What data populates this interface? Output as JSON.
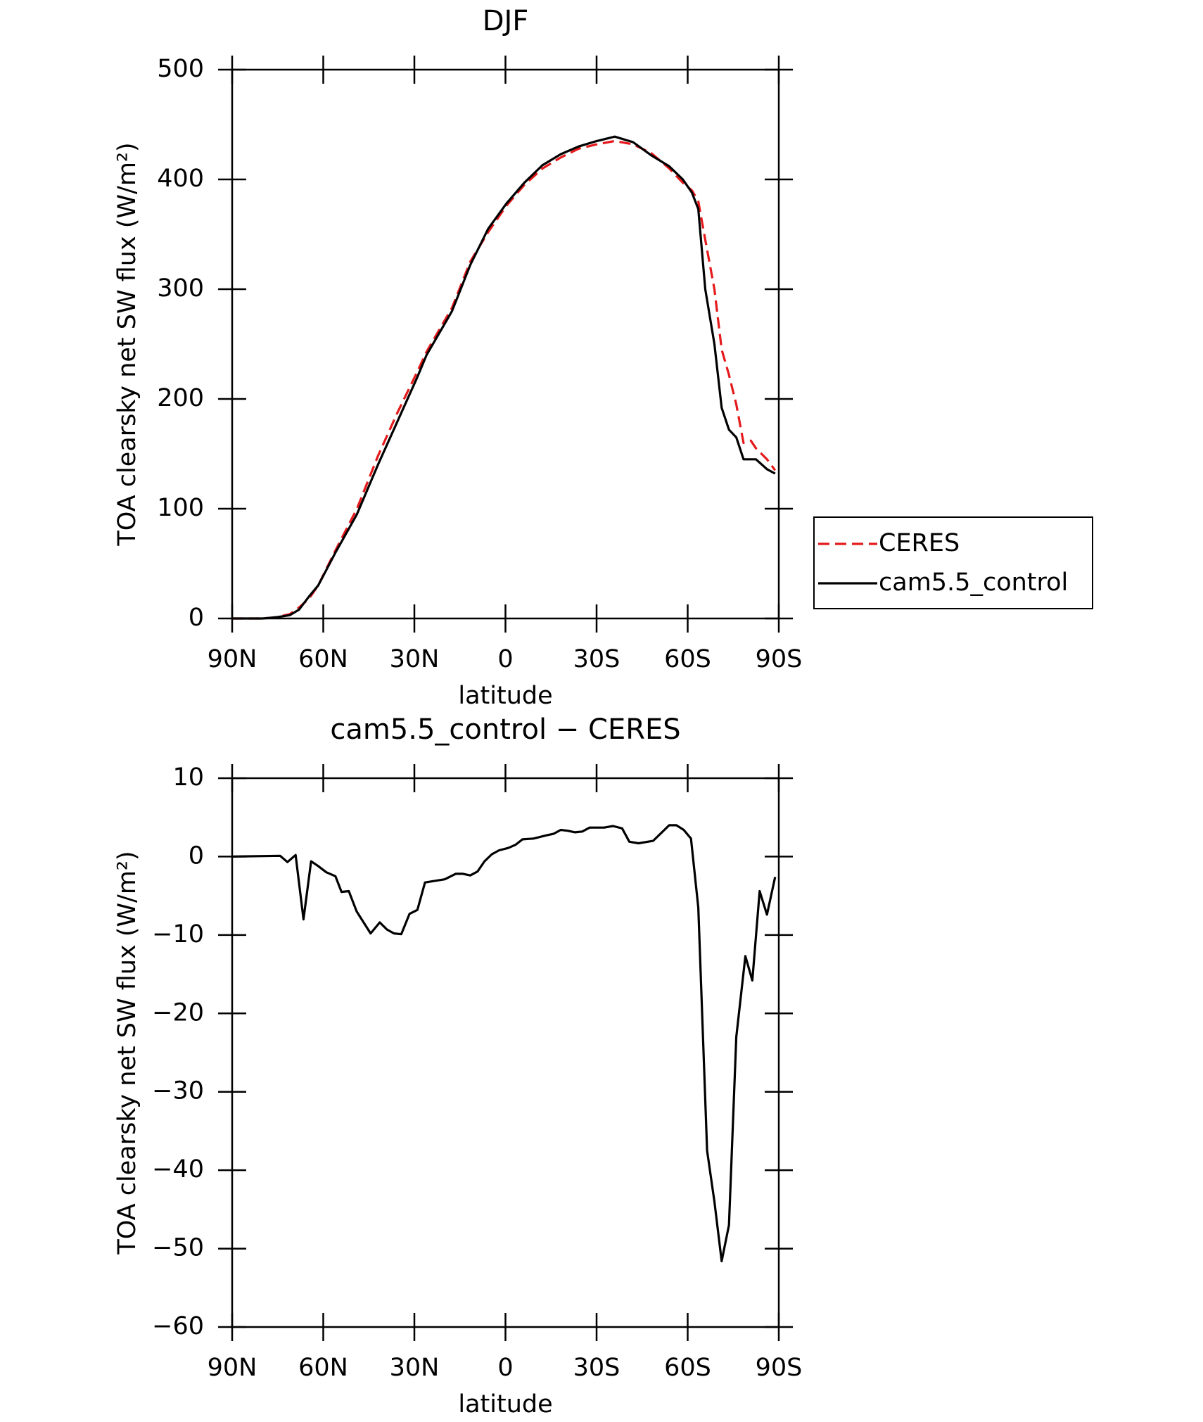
{
  "chart_data": [
    {
      "type": "line",
      "title": "DJF",
      "xlabel": "latitude",
      "ylabel": "TOA clearsky net SW flux (W/m²)",
      "xlim": [
        90,
        -90
      ],
      "ylim": [
        0,
        500
      ],
      "xticks": [
        {
          "value": 90,
          "label": "90N"
        },
        {
          "value": 60,
          "label": "60N"
        },
        {
          "value": 30,
          "label": "30N"
        },
        0,
        {
          "value": -30,
          "label": "30S"
        },
        {
          "value": -60,
          "label": "60S"
        },
        {
          "value": -90,
          "label": "90S"
        }
      ],
      "yticks": [
        0,
        100,
        200,
        300,
        400,
        500
      ],
      "x": [
        90,
        80,
        75.7,
        71,
        68,
        64.7,
        61.7,
        56,
        48.9,
        42,
        35.5,
        29,
        26,
        17.6,
        11.6,
        5.7,
        -0.3,
        -6.2,
        -12.2,
        -18.2,
        -24.1,
        -30.1,
        -36,
        -42,
        -48,
        -53.9,
        -58.4,
        -61.4,
        -63.5,
        -65.8,
        -68.8,
        -71.2,
        -73.6,
        -76,
        -78.4,
        -80.8,
        -82.5,
        -86.1,
        -88.8
      ],
      "legend": "right",
      "series": [
        {
          "name": "CERES",
          "color": "#e41a1c",
          "dashed": true,
          "values": [
            0,
            0,
            1,
            4,
            10,
            18,
            30,
            62,
            100,
            148,
            188,
            225,
            243,
            283,
            325,
            352,
            376,
            395,
            410,
            420,
            428,
            432,
            435,
            432,
            424,
            410,
            397,
            390,
            380,
            345,
            300,
            245,
            222,
            195,
            160,
            162,
            155,
            145,
            135
          ]
        },
        {
          "name": "cam5.5_control",
          "color": "#000000",
          "dashed": false,
          "values": [
            0,
            0,
            1,
            3,
            8,
            20,
            30,
            60,
            95,
            140,
            180,
            220,
            240,
            280,
            322,
            355,
            378,
            397,
            413,
            423,
            430,
            435,
            439,
            434,
            422,
            412,
            400,
            388,
            373,
            300,
            250,
            192,
            172,
            165,
            145,
            145,
            145,
            136,
            132
          ]
        }
      ]
    },
    {
      "type": "line",
      "title": "cam5.5_control − CERES",
      "xlabel": "latitude",
      "ylabel": "TOA clearsky net SW flux (W/m²)",
      "xlim": [
        90,
        -90
      ],
      "ylim": [
        -60,
        10
      ],
      "xticks": [
        {
          "value": 90,
          "label": "90N"
        },
        {
          "value": 60,
          "label": "60N"
        },
        {
          "value": 30,
          "label": "30N"
        },
        0,
        {
          "value": -30,
          "label": "30S"
        },
        {
          "value": -60,
          "label": "60S"
        },
        {
          "value": -90,
          "label": "90S"
        }
      ],
      "yticks": [
        {
          "value": -60,
          "label": "−60"
        },
        {
          "value": -50,
          "label": "−50"
        },
        {
          "value": -40,
          "label": "−40"
        },
        {
          "value": -30,
          "label": "−30"
        },
        {
          "value": -20,
          "label": "−20"
        },
        {
          "value": -10,
          "label": "−10"
        },
        0,
        10
      ],
      "x": [
        90,
        74.2,
        71.8,
        69.1,
        66.5,
        64,
        61.7,
        59,
        56,
        54,
        51.6,
        49,
        44.4,
        41.4,
        39,
        36.7,
        34.3,
        31.6,
        29,
        26.5,
        20,
        16.4,
        14,
        11.6,
        9.2,
        6.9,
        4.5,
        2.1,
        -0.9,
        -3.3,
        -5.6,
        -9.2,
        -13.4,
        -15.8,
        -18.2,
        -20.5,
        -22.9,
        -25.3,
        -27.7,
        -32.5,
        -35.4,
        -38.4,
        -40.8,
        -43.8,
        -48.6,
        -53.9,
        -56.3,
        -58.7,
        -61.1,
        -63.5,
        -66.4,
        -68.8,
        -71.2,
        -73.6,
        -76,
        -79,
        -81.3,
        -83.7,
        -86.1,
        -88.8
      ],
      "color": "#000000",
      "values": [
        0,
        0.1,
        -0.7,
        0.2,
        -8,
        -0.6,
        -1.2,
        -2,
        -2.5,
        -4.5,
        -4.4,
        -7,
        -9.8,
        -8.4,
        -9.3,
        -9.8,
        -9.9,
        -7.3,
        -6.8,
        -3.3,
        -2.9,
        -2.2,
        -2.2,
        -2.4,
        -1.9,
        -0.6,
        0.3,
        0.8,
        1.1,
        1.5,
        2.2,
        2.3,
        2.7,
        2.9,
        3.4,
        3.3,
        3.1,
        3.2,
        3.7,
        3.7,
        3.9,
        3.6,
        1.9,
        1.7,
        2,
        4,
        4,
        3.4,
        2.3,
        -6.5,
        -37.5,
        -44,
        -51.6,
        -47,
        -23,
        -12.7,
        -15.8,
        -4.4,
        -7.4,
        -2.6
      ]
    }
  ]
}
